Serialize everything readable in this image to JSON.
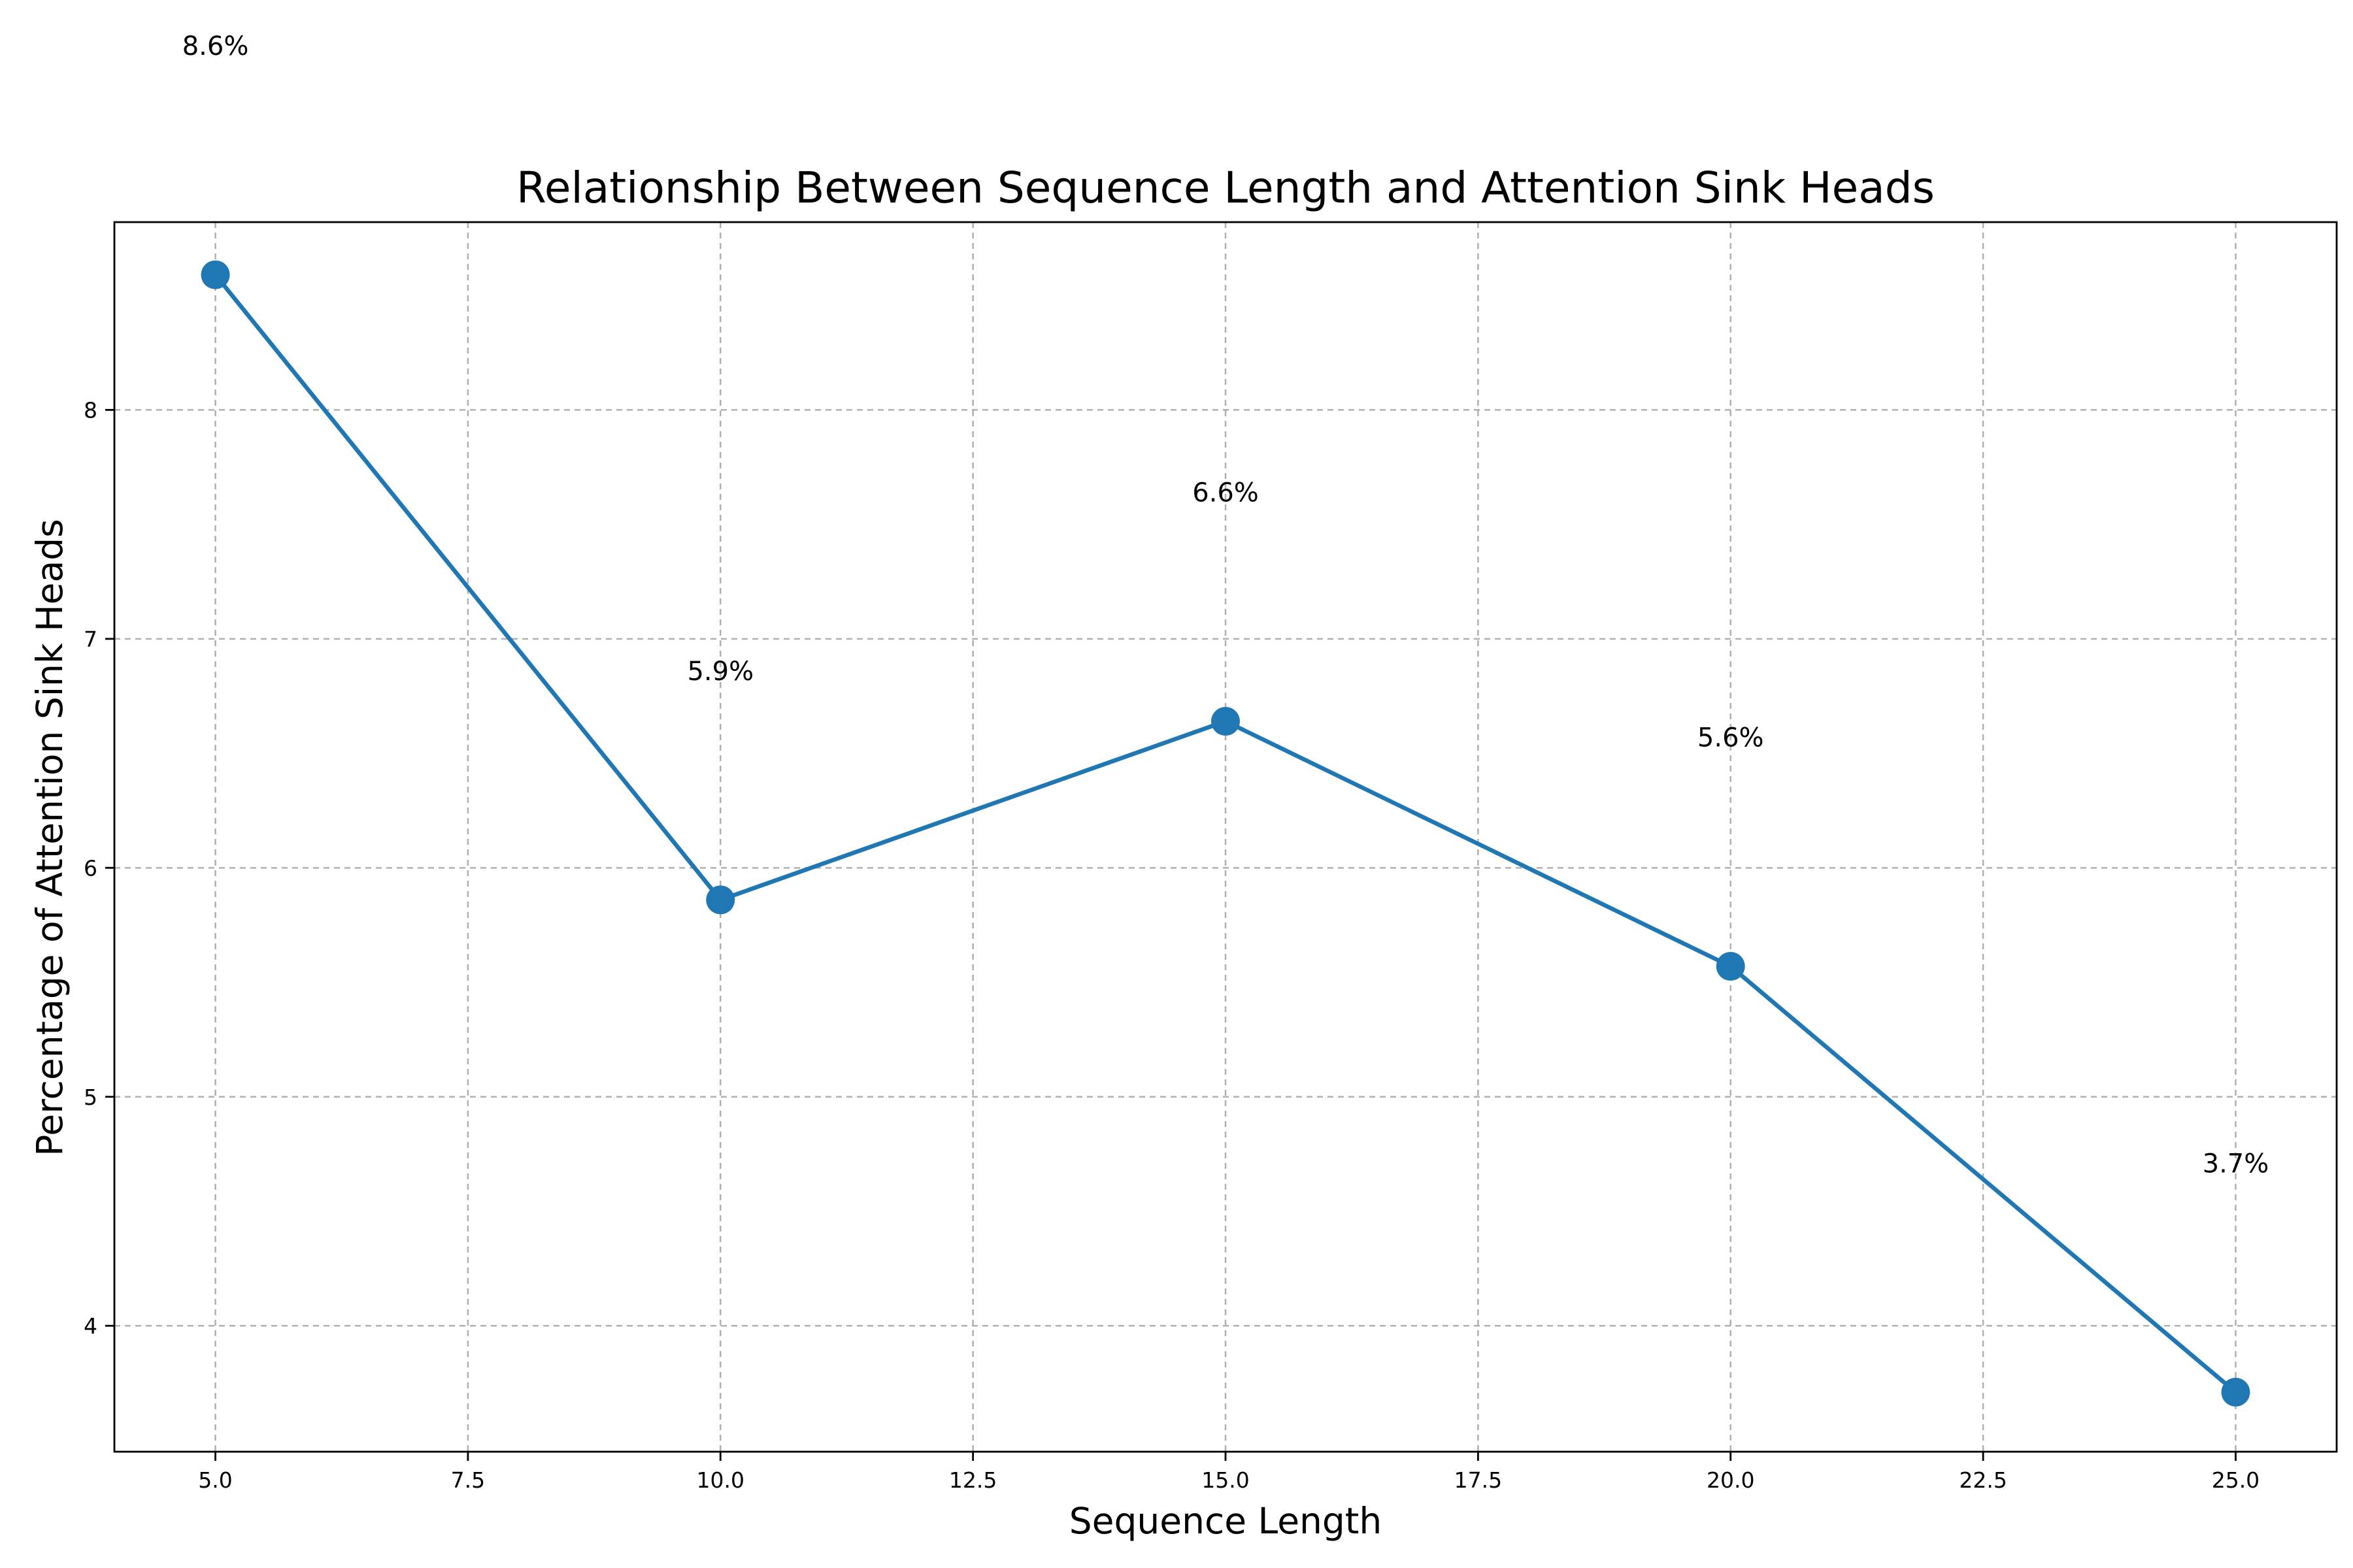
{
  "chart_data": {
    "type": "line",
    "title": "Relationship Between Sequence Length and Attention Sink Heads",
    "xlabel": "Sequence Length",
    "ylabel": "Percentage of Attention Sink Heads",
    "x": [
      5,
      10,
      15,
      20,
      25
    ],
    "series": [
      {
        "values": [
          8.59,
          5.86,
          6.64,
          5.57,
          3.71
        ],
        "color": "#1f77b4",
        "marker": "circle"
      }
    ],
    "data_labels": [
      {
        "text": "8.6%",
        "x": 5,
        "y": 9.59
      },
      {
        "text": "5.9%",
        "x": 10,
        "y": 6.86
      },
      {
        "text": "6.6%",
        "x": 15,
        "y": 7.64
      },
      {
        "text": "5.6%",
        "x": 20,
        "y": 6.57
      },
      {
        "text": "3.7%",
        "x": 25,
        "y": 4.71
      }
    ],
    "xlim": [
      4.0,
      26.0
    ],
    "ylim": [
      3.45,
      8.82
    ],
    "xticks": [
      5.0,
      7.5,
      10.0,
      12.5,
      15.0,
      17.5,
      20.0,
      22.5,
      25.0
    ],
    "xtick_labels": [
      "5.0",
      "7.5",
      "10.0",
      "12.5",
      "15.0",
      "17.5",
      "20.0",
      "22.5",
      "25.0"
    ],
    "yticks": [
      4,
      5,
      6,
      7,
      8
    ],
    "ytick_labels": [
      "4",
      "5",
      "6",
      "7",
      "8"
    ],
    "grid": true,
    "legend": "none"
  }
}
